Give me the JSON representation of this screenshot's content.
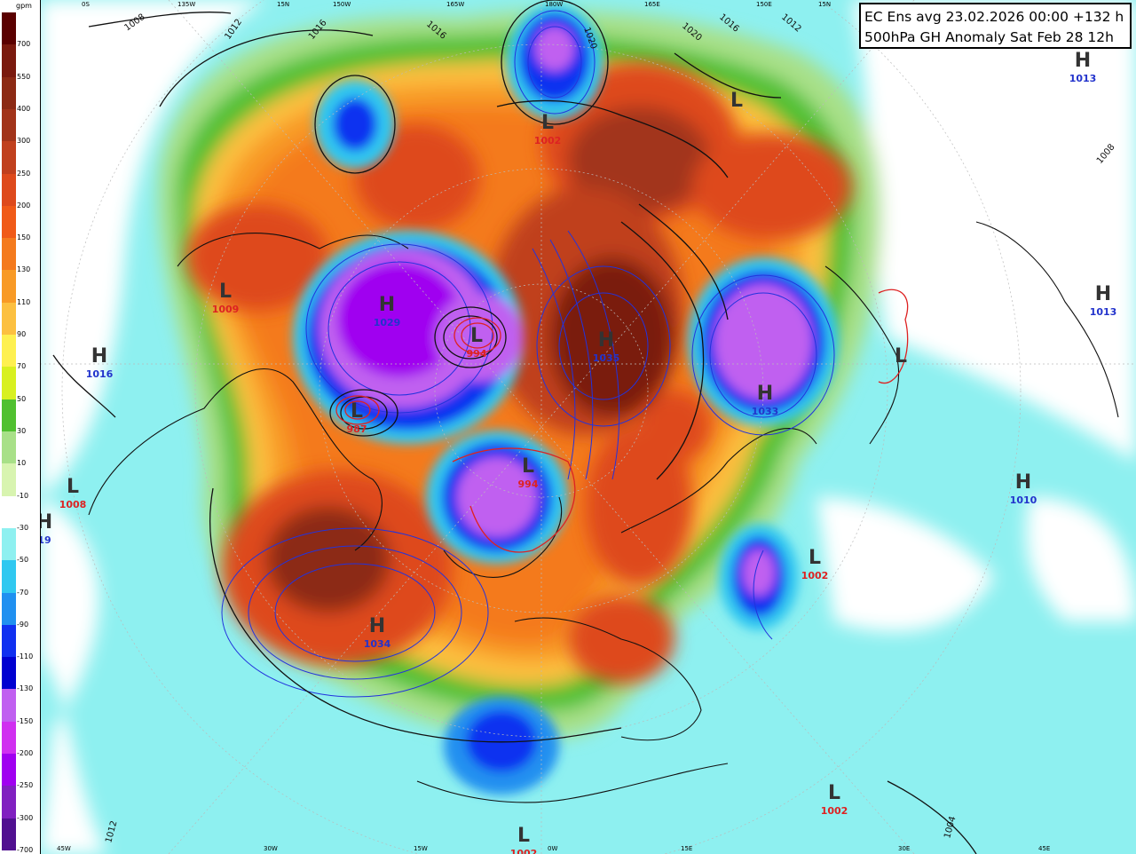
{
  "title": {
    "line1": "EC Ens avg 23.02.2026 00:00 +132 h",
    "line2": "500hPa GH Anomaly Sat Feb 28 12h"
  },
  "legend": {
    "unit": "gpm",
    "bins": [
      {
        "label": "700",
        "color": "#5a0000"
      },
      {
        "label": "550",
        "color": "#7a1a0e"
      },
      {
        "label": "400",
        "color": "#8c2a14"
      },
      {
        "label": "300",
        "color": "#a2341a"
      },
      {
        "label": "250",
        "color": "#c0401e"
      },
      {
        "label": "200",
        "color": "#de4a1c"
      },
      {
        "label": "150",
        "color": "#f05a18"
      },
      {
        "label": "130",
        "color": "#f47a1e"
      },
      {
        "label": "110",
        "color": "#f89a26"
      },
      {
        "label": "90",
        "color": "#fcc040"
      },
      {
        "label": "70",
        "color": "#fef050"
      },
      {
        "label": "50",
        "color": "#d8f020"
      },
      {
        "label": "30",
        "color": "#50c030"
      },
      {
        "label": "10",
        "color": "#a8e088"
      },
      {
        "label": "-10",
        "color": "#d8f4b0"
      },
      {
        "label": "-30",
        "color": "#ffffff"
      },
      {
        "label": "-50",
        "color": "#8ef0f0"
      },
      {
        "label": "-70",
        "color": "#30c8f0"
      },
      {
        "label": "-90",
        "color": "#2090f0"
      },
      {
        "label": "-110",
        "color": "#1030f0"
      },
      {
        "label": "-130",
        "color": "#0000d0"
      },
      {
        "label": "-150",
        "color": "#c060f0"
      },
      {
        "label": "-200",
        "color": "#d030f0"
      },
      {
        "label": "-250",
        "color": "#a000f0"
      },
      {
        "label": "-300",
        "color": "#8020c0"
      },
      {
        "label": "-700",
        "color": "#501090"
      }
    ]
  },
  "centers": [
    {
      "kind": "H",
      "value": "1034",
      "letter_color": "#333333",
      "value_color": "#2233cc"
    },
    {
      "kind": "H",
      "value": "1035",
      "letter_color": "#333333",
      "value_color": "#2233cc"
    },
    {
      "kind": "H",
      "value": "1033",
      "letter_color": "#333333",
      "value_color": "#2233cc"
    },
    {
      "kind": "H",
      "value": "1013",
      "letter_color": "#333333",
      "value_color": "#2233cc"
    },
    {
      "kind": "H",
      "value": "1013",
      "letter_color": "#333333",
      "value_color": "#2233cc"
    },
    {
      "kind": "H",
      "value": "1010",
      "letter_color": "#333333",
      "value_color": "#2233cc"
    },
    {
      "kind": "H",
      "value": "1016",
      "letter_color": "#333333",
      "value_color": "#2233cc"
    },
    {
      "kind": "H",
      "value": "19",
      "letter_color": "#333333",
      "value_color": "#2233cc"
    },
    {
      "kind": "H",
      "value": "1029",
      "letter_color": "#333333",
      "value_color": "#2233cc"
    },
    {
      "kind": "L",
      "value": "1009",
      "letter_color": "#333333",
      "value_color": "#dd2222"
    },
    {
      "kind": "L",
      "value": "1002",
      "letter_color": "#333333",
      "value_color": "#dd2222"
    },
    {
      "kind": "L",
      "value": "1002",
      "letter_color": "#333333",
      "value_color": "#dd2222"
    },
    {
      "kind": "L",
      "value": "1002",
      "letter_color": "#333333",
      "value_color": "#dd2222"
    },
    {
      "kind": "L",
      "value": "1008",
      "letter_color": "#333333",
      "value_color": "#dd2222"
    },
    {
      "kind": "L",
      "value": "994",
      "letter_color": "#333333",
      "value_color": "#dd2222"
    },
    {
      "kind": "L",
      "value": "987",
      "letter_color": "#333333",
      "value_color": "#dd2222"
    },
    {
      "kind": "L",
      "value": "994",
      "letter_color": "#333333",
      "value_color": "#dd2222"
    },
    {
      "kind": "L",
      "value": "",
      "letter_color": "#333333",
      "value_color": "#dd2222"
    },
    {
      "kind": "L",
      "value": "",
      "letter_color": "#333333",
      "value_color": "#dd2222"
    },
    {
      "kind": "L",
      "value": "1002",
      "letter_color": "#333333",
      "value_color": "#dd2222"
    }
  ],
  "isobar_labels": [
    "1008",
    "1012",
    "1016",
    "1016",
    "1020",
    "1020",
    "1016",
    "1012",
    "1008",
    "1012",
    "1004"
  ],
  "longitude_labels": [
    "0S",
    "135W",
    "15N",
    "150W",
    "165W",
    "180W",
    "165E",
    "150E",
    "15N",
    "45W",
    "30W",
    "15W",
    "0W",
    "15E",
    "30E",
    "45E"
  ]
}
